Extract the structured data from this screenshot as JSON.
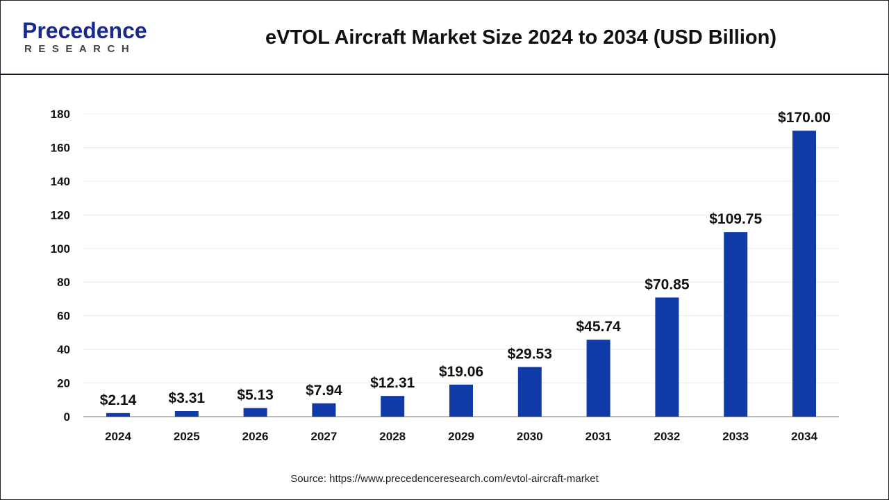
{
  "header": {
    "logo_main": "Precedence",
    "logo_sub": "RESEARCH",
    "title": "eVTOL Aircraft Market Size 2024 to 2034 (USD Billion)"
  },
  "source": "Source: https://www.precedenceresearch.com/evtol-aircraft-market",
  "chart_data": {
    "type": "bar",
    "title": "eVTOL Aircraft Market Size 2024 to 2034 (USD Billion)",
    "categories": [
      "2024",
      "2025",
      "2026",
      "2027",
      "2028",
      "2029",
      "2030",
      "2031",
      "2032",
      "2033",
      "2034"
    ],
    "values": [
      2.14,
      3.31,
      5.13,
      7.94,
      12.31,
      19.06,
      29.53,
      45.74,
      70.85,
      109.75,
      170.0
    ],
    "data_labels": [
      "$2.14",
      "$3.31",
      "$5.13",
      "$7.94",
      "$12.31",
      "$19.06",
      "$29.53",
      "$45.74",
      "$70.85",
      "$109.75",
      "$170.00"
    ],
    "ylim": [
      0,
      180
    ],
    "yticks": [
      0,
      20,
      40,
      60,
      80,
      100,
      120,
      140,
      160,
      180
    ],
    "grid": true,
    "bar_color": "#0f3aa8",
    "xlabel": "",
    "ylabel": ""
  }
}
